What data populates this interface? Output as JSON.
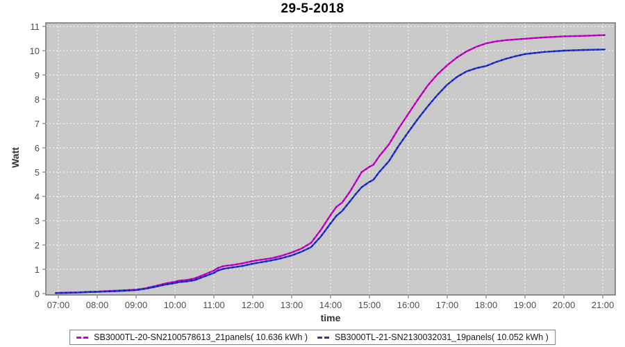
{
  "title": "29-5-2018",
  "colors": {
    "plot_background": "#c9c9c9",
    "plot_border": "#707070",
    "gridline": "#ffffff",
    "tick_text": "#4d4d4d",
    "axis_label_text": "#333333",
    "series1": "#cc00cc",
    "series2": "#2233cc"
  },
  "chart_data": {
    "type": "line",
    "title": "29-5-2018",
    "xlabel": "time",
    "ylabel": "Watt",
    "ylim": [
      0,
      11
    ],
    "grid": true,
    "legend_position": "bottom",
    "xticks": [
      "07:00",
      "08:00",
      "09:00",
      "10:00",
      "11:00",
      "12:00",
      "13:00",
      "14:00",
      "15:00",
      "16:00",
      "17:00",
      "18:00",
      "19:00",
      "20:00",
      "21:00"
    ],
    "yticks": [
      0,
      1,
      2,
      3,
      4,
      5,
      6,
      7,
      8,
      9,
      10,
      11
    ],
    "series": [
      {
        "name": "SB3000TL-20-SN2100578613_21panels( 10.636 kWh )",
        "color": "#cc00cc",
        "dash_color": "#8e008e",
        "total_kwh": "10.636",
        "points": [
          [
            6.93,
            0.02
          ],
          [
            7.0,
            0.03
          ],
          [
            7.25,
            0.04
          ],
          [
            7.5,
            0.05
          ],
          [
            7.75,
            0.07
          ],
          [
            8.0,
            0.08
          ],
          [
            8.25,
            0.1
          ],
          [
            8.5,
            0.12
          ],
          [
            8.75,
            0.14
          ],
          [
            9.0,
            0.16
          ],
          [
            9.25,
            0.22
          ],
          [
            9.5,
            0.31
          ],
          [
            9.75,
            0.41
          ],
          [
            10.0,
            0.49
          ],
          [
            10.1,
            0.53
          ],
          [
            10.3,
            0.56
          ],
          [
            10.5,
            0.62
          ],
          [
            10.75,
            0.78
          ],
          [
            11.0,
            0.95
          ],
          [
            11.1,
            1.05
          ],
          [
            11.25,
            1.13
          ],
          [
            11.5,
            1.18
          ],
          [
            11.75,
            1.25
          ],
          [
            12.0,
            1.34
          ],
          [
            12.25,
            1.4
          ],
          [
            12.5,
            1.46
          ],
          [
            12.75,
            1.56
          ],
          [
            13.0,
            1.69
          ],
          [
            13.25,
            1.85
          ],
          [
            13.5,
            2.09
          ],
          [
            13.75,
            2.62
          ],
          [
            14.0,
            3.23
          ],
          [
            14.15,
            3.57
          ],
          [
            14.3,
            3.75
          ],
          [
            14.5,
            4.2
          ],
          [
            14.65,
            4.6
          ],
          [
            14.8,
            5.0
          ],
          [
            15.0,
            5.22
          ],
          [
            15.1,
            5.3
          ],
          [
            15.25,
            5.65
          ],
          [
            15.5,
            6.14
          ],
          [
            15.75,
            6.8
          ],
          [
            16.0,
            7.4
          ],
          [
            16.25,
            8.0
          ],
          [
            16.5,
            8.57
          ],
          [
            16.75,
            9.03
          ],
          [
            17.0,
            9.4
          ],
          [
            17.25,
            9.72
          ],
          [
            17.5,
            9.97
          ],
          [
            17.75,
            10.16
          ],
          [
            18.0,
            10.3
          ],
          [
            18.25,
            10.38
          ],
          [
            18.5,
            10.43
          ],
          [
            19.0,
            10.49
          ],
          [
            19.5,
            10.55
          ],
          [
            20.0,
            10.59
          ],
          [
            20.5,
            10.61
          ],
          [
            21.05,
            10.64
          ]
        ]
      },
      {
        "name": "SB3000TL-21-SN2130032031_19panels( 10.052 kWh )",
        "color": "#2233cc",
        "dash_color": "#001499",
        "total_kwh": "10.052",
        "points": [
          [
            6.93,
            0.02
          ],
          [
            7.0,
            0.02
          ],
          [
            7.25,
            0.03
          ],
          [
            7.5,
            0.04
          ],
          [
            7.75,
            0.06
          ],
          [
            8.0,
            0.07
          ],
          [
            8.25,
            0.09
          ],
          [
            8.5,
            0.1
          ],
          [
            8.75,
            0.12
          ],
          [
            9.0,
            0.14
          ],
          [
            9.25,
            0.2
          ],
          [
            9.5,
            0.28
          ],
          [
            9.75,
            0.37
          ],
          [
            10.0,
            0.43
          ],
          [
            10.1,
            0.47
          ],
          [
            10.3,
            0.5
          ],
          [
            10.5,
            0.55
          ],
          [
            10.75,
            0.7
          ],
          [
            11.0,
            0.85
          ],
          [
            11.1,
            0.95
          ],
          [
            11.25,
            1.02
          ],
          [
            11.5,
            1.08
          ],
          [
            11.75,
            1.14
          ],
          [
            12.0,
            1.23
          ],
          [
            12.25,
            1.3
          ],
          [
            12.5,
            1.37
          ],
          [
            12.75,
            1.46
          ],
          [
            13.0,
            1.57
          ],
          [
            13.25,
            1.72
          ],
          [
            13.5,
            1.91
          ],
          [
            13.75,
            2.35
          ],
          [
            14.0,
            2.89
          ],
          [
            14.15,
            3.2
          ],
          [
            14.3,
            3.4
          ],
          [
            14.5,
            3.8
          ],
          [
            14.65,
            4.1
          ],
          [
            14.8,
            4.38
          ],
          [
            15.0,
            4.6
          ],
          [
            15.1,
            4.68
          ],
          [
            15.25,
            5.0
          ],
          [
            15.5,
            5.45
          ],
          [
            15.75,
            6.08
          ],
          [
            16.0,
            6.65
          ],
          [
            16.25,
            7.2
          ],
          [
            16.5,
            7.71
          ],
          [
            16.75,
            8.18
          ],
          [
            17.0,
            8.6
          ],
          [
            17.25,
            8.92
          ],
          [
            17.5,
            9.15
          ],
          [
            17.75,
            9.28
          ],
          [
            18.0,
            9.37
          ],
          [
            18.25,
            9.53
          ],
          [
            18.5,
            9.66
          ],
          [
            18.75,
            9.77
          ],
          [
            19.0,
            9.86
          ],
          [
            19.5,
            9.95
          ],
          [
            20.0,
            10.0
          ],
          [
            20.5,
            10.03
          ],
          [
            21.05,
            10.05
          ]
        ]
      }
    ]
  }
}
